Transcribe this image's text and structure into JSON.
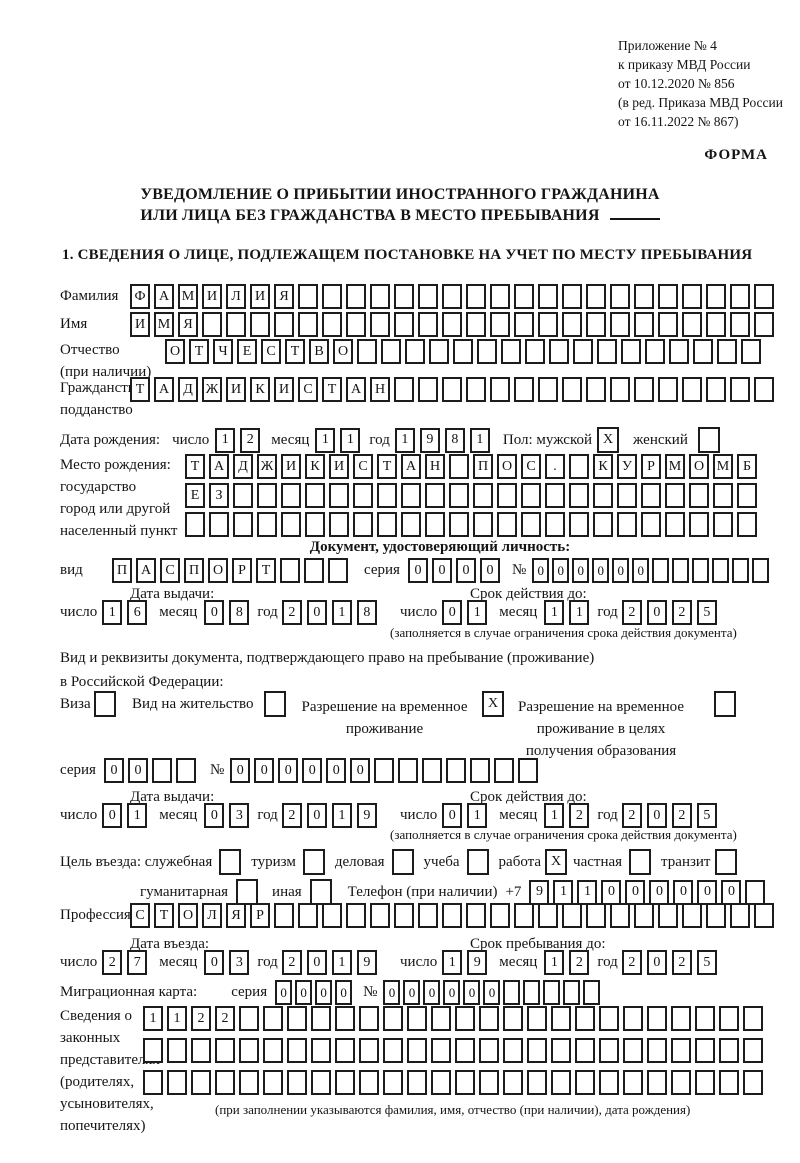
{
  "page": {
    "annex": [
      "Приложение № 4",
      "к приказу МВД России",
      "от 10.12.2020 № 856",
      "(в ред. Приказа МВД России",
      "от 16.11.2022 № 867)"
    ],
    "form_word": "ФОРМА",
    "title1": "УВЕДОМЛЕНИЕ О ПРИБЫТИИ ИНОСТРАННОГО ГРАЖДАНИНА",
    "title2": "ИЛИ ЛИЦА БЕЗ ГРАЖДАНСТВА В МЕСТО ПРЕБЫВАНИЯ",
    "section1": "1. СВЕДЕНИЯ О ЛИЦЕ, ПОДЛЕЖАЩЕМ ПОСТАНОВКЕ НА УЧЕТ ПО МЕСТУ ПРЕБЫВАНИЯ",
    "ink_color": "#1c1c1c",
    "paper_color": "#ffffff"
  },
  "labels": {
    "surname": "Фамилия",
    "firstname": "Имя",
    "patronymic": "Отчество",
    "patronymic_note": "(при наличии)",
    "citizenship1": "Гражданство,",
    "citizenship2": "подданство",
    "dob": "Дата рождения:",
    "day": "число",
    "month": "месяц",
    "year": "год",
    "sex_male": "Пол: мужской",
    "sex_female": "женский",
    "birthplace": "Место рождения:",
    "birthplace_country": "государство",
    "birthplace_city1": "город или другой",
    "birthplace_city2": "населенный пункт",
    "doc_header": "Документ, удостоверяющий личность:",
    "doc_kind": "вид",
    "series": "серия",
    "number": "№",
    "issue_date": "Дата выдачи:",
    "valid_until": "Срок действия до:",
    "restriction_note": "(заполняется в случае ограничения срока действия документа)",
    "resdoc_line1": "Вид и реквизиты документа, подтверждающего право на пребывание (проживание)",
    "resdoc_line2": "в Российской Федерации:",
    "visa": "Виза",
    "residence_permit": "Вид на жительство",
    "temp_res_1": "Разрешение на временное",
    "temp_res_2": "проживание",
    "temp_edu_1": "Разрешение на временное",
    "temp_edu_2": "проживание в целях",
    "temp_edu_3": "получения образования",
    "purpose_official": "Цель въезда: служебная",
    "tourism": "туризм",
    "business": "деловая",
    "study": "учеба",
    "work": "работа",
    "private": "частная",
    "transit": "транзит",
    "humanitarian": "гуманитарная",
    "other": "иная",
    "phone": "Телефон (при наличии)",
    "phone_prefix": "+7",
    "profession": "Профессия",
    "entry_date": "Дата въезда:",
    "stay_until": "Срок пребывания до:",
    "migration_card": "Миграционная карта:",
    "rep_lines": [
      "Сведения о",
      "законных",
      "представителях",
      "(родителях,",
      "усыновителях,",
      "попечителях)"
    ],
    "rep_note": "(при заполнении указываются фамилия, имя, отчество (при наличии), дата рождения)"
  },
  "values": {
    "surname": {
      "text": "ФАМИЛИЯ",
      "length": 27
    },
    "firstname": {
      "text": "ИМЯ",
      "length": 27
    },
    "patronymic": {
      "text": "ОТЧЕСТВО",
      "length": 25
    },
    "citizenship": {
      "text": "ТАДЖИКИСТАН",
      "length": 27
    },
    "dob_day": {
      "text": "12",
      "length": 2
    },
    "dob_month": {
      "text": "11",
      "length": 2
    },
    "dob_year": {
      "text": "1981",
      "length": 4
    },
    "sex_male": {
      "text": "X",
      "length": 1
    },
    "sex_female": {
      "text": "",
      "length": 1
    },
    "birth_row1": {
      "text": "ТАДЖИКИСТАН ПОС. КУРМОМБ",
      "length": 24
    },
    "birth_row2": {
      "text": "ЕЗ",
      "length": 24
    },
    "birth_row3": {
      "text": "",
      "length": 24
    },
    "id_kind": {
      "text": "ПАСПОРТ",
      "length": 10
    },
    "id_series": {
      "text": "0000",
      "length": 4
    },
    "id_number": {
      "text": "000000",
      "length": 12
    },
    "id_issue_day": {
      "text": "16",
      "length": 2
    },
    "id_issue_month": {
      "text": "08",
      "length": 2
    },
    "id_issue_year": {
      "text": "2018",
      "length": 4
    },
    "id_valid_day": {
      "text": "01",
      "length": 2
    },
    "id_valid_month": {
      "text": "11",
      "length": 2
    },
    "id_valid_year": {
      "text": "2025",
      "length": 4
    },
    "visa": {
      "text": "",
      "length": 1
    },
    "residence_permit": {
      "text": "",
      "length": 1
    },
    "temp_residence": {
      "text": "X",
      "length": 1
    },
    "temp_residence_edu": {
      "text": "",
      "length": 1
    },
    "permit_series": {
      "text": "00",
      "length": 4
    },
    "permit_number": {
      "text": "000000",
      "length": 13
    },
    "permit_issue_day": {
      "text": "01",
      "length": 2
    },
    "permit_issue_month": {
      "text": "03",
      "length": 2
    },
    "permit_issue_year": {
      "text": "2019",
      "length": 4
    },
    "permit_valid_day": {
      "text": "01",
      "length": 2
    },
    "permit_valid_month": {
      "text": "12",
      "length": 2
    },
    "permit_valid_year": {
      "text": "2025",
      "length": 4
    },
    "purpose_official": {
      "text": "",
      "length": 1
    },
    "purpose_tourism": {
      "text": "",
      "length": 1
    },
    "purpose_business": {
      "text": "",
      "length": 1
    },
    "purpose_study": {
      "text": "",
      "length": 1
    },
    "purpose_work": {
      "text": "X",
      "length": 1
    },
    "purpose_private": {
      "text": "",
      "length": 1
    },
    "purpose_transit": {
      "text": "",
      "length": 1
    },
    "purpose_humanitarian": {
      "text": "",
      "length": 1
    },
    "purpose_other": {
      "text": "",
      "length": 1
    },
    "phone": {
      "text": "911000000",
      "length": 10
    },
    "profession": {
      "text": "СТОЛЯР",
      "length": 27
    },
    "entry_day": {
      "text": "27",
      "length": 2
    },
    "entry_month": {
      "text": "03",
      "length": 2
    },
    "entry_year": {
      "text": "2019",
      "length": 4
    },
    "stay_day": {
      "text": "19",
      "length": 2
    },
    "stay_month": {
      "text": "12",
      "length": 2
    },
    "stay_year": {
      "text": "2025",
      "length": 4
    },
    "migr_series": {
      "text": "0000",
      "length": 4
    },
    "migr_number": {
      "text": "000000",
      "length": 11
    },
    "rep_row1": {
      "text": "1122",
      "length": 26
    },
    "rep_row2": {
      "text": "",
      "length": 26
    },
    "rep_row3": {
      "text": "",
      "length": 26
    }
  }
}
